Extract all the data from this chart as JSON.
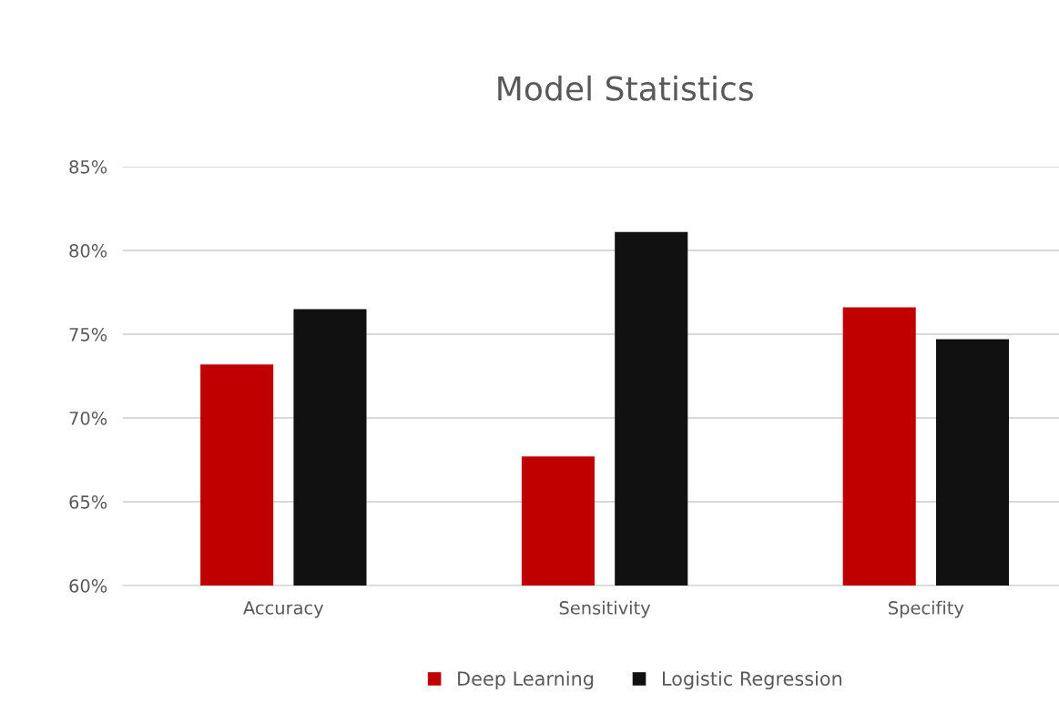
{
  "chart_data": {
    "type": "bar",
    "title": "Model Statistics",
    "categories": [
      "Accuracy",
      "Sensitivity",
      "Specifity"
    ],
    "series": [
      {
        "name": "Deep Learning",
        "color": "#c00000",
        "values": [
          73.2,
          67.7,
          76.6
        ]
      },
      {
        "name": "Logistic Regression",
        "color": "#111111",
        "values": [
          76.5,
          81.1,
          74.7
        ]
      }
    ],
    "ylim": [
      60,
      85
    ],
    "yticks": [
      {
        "value": 60,
        "label": "60%"
      },
      {
        "value": 65,
        "label": "65%"
      },
      {
        "value": 70,
        "label": "70%"
      },
      {
        "value": 75,
        "label": "75%"
      },
      {
        "value": 80,
        "label": "80%"
      },
      {
        "value": 85,
        "label": "85%"
      }
    ],
    "grid": "y",
    "legend": "bottom"
  }
}
